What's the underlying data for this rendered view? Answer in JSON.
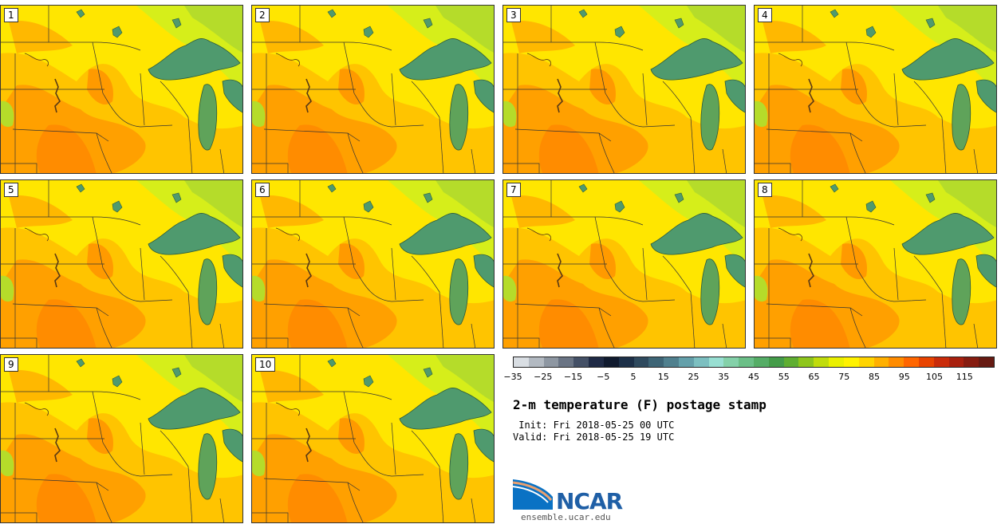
{
  "members": [
    "1",
    "2",
    "3",
    "4",
    "5",
    "6",
    "7",
    "8",
    "9",
    "10"
  ],
  "colorbar": {
    "colors": [
      "#d9dee3",
      "#b3bac2",
      "#8e97a2",
      "#6a7484",
      "#445066",
      "#1f2a45",
      "#101a2e",
      "#1d3048",
      "#2f4a5e",
      "#3e6576",
      "#50808e",
      "#64a0aa",
      "#7cbfc0",
      "#98dfd2",
      "#84d1a9",
      "#6bbf87",
      "#55ad66",
      "#449c49",
      "#5fae31",
      "#8ec61c",
      "#c0dc0c",
      "#eaf000",
      "#fff200",
      "#ffd400",
      "#ffb000",
      "#ff8c00",
      "#ff6600",
      "#e84300",
      "#c92b0a",
      "#a8200e",
      "#861c10",
      "#661a12"
    ],
    "ticks": [
      "−35",
      "−25",
      "−15",
      "−5",
      "5",
      "15",
      "25",
      "35",
      "45",
      "55",
      "65",
      "75",
      "85",
      "95",
      "105",
      "115"
    ]
  },
  "title": "2-m temperature (F) postage stamp",
  "init_line": " Init: Fri 2018-05-25 00 UTC",
  "valid_line": "Valid: Fri 2018-05-25 19 UTC",
  "logo_text": "NCAR",
  "site": "ensemble.ucar.edu"
}
